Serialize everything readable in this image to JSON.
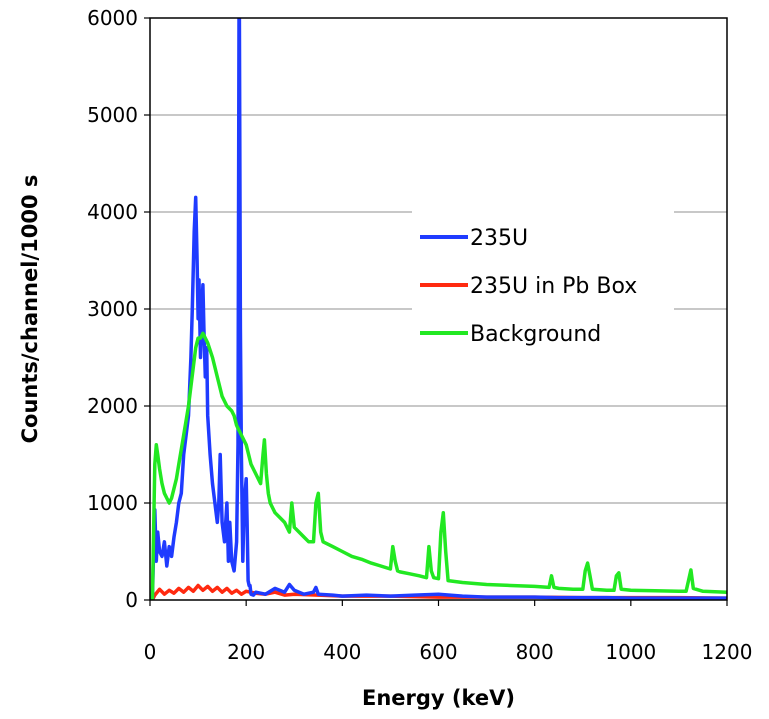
{
  "chart_data": {
    "type": "line",
    "title": "",
    "xlabel": "Energy (keV)",
    "ylabel": "Counts/channel/1000 s",
    "xlim": [
      0,
      1200
    ],
    "ylim": [
      0,
      6000
    ],
    "x_ticks": [
      0,
      200,
      400,
      600,
      800,
      1000,
      1200
    ],
    "y_ticks": [
      0,
      1000,
      2000,
      3000,
      4000,
      5000,
      6000
    ],
    "grid": "horizontal",
    "legend_position": "right-center",
    "series": [
      {
        "name": "235U",
        "color": "#1f3bff",
        "x": [
          5,
          8,
          10,
          13,
          16,
          20,
          25,
          30,
          35,
          40,
          45,
          50,
          55,
          60,
          65,
          70,
          75,
          80,
          85,
          88,
          92,
          95,
          98,
          100,
          102,
          105,
          108,
          110,
          112,
          115,
          118,
          120,
          125,
          130,
          135,
          140,
          143,
          146,
          150,
          155,
          160,
          163,
          166,
          170,
          175,
          180,
          183,
          185,
          186,
          188,
          190,
          193,
          196,
          200,
          202,
          204,
          206,
          208,
          210,
          215,
          220,
          240,
          260,
          280,
          290,
          300,
          320,
          340,
          345,
          350,
          380,
          400,
          450,
          500,
          550,
          600,
          650,
          700,
          750,
          800,
          850,
          900,
          950,
          1000,
          1050,
          1100,
          1150,
          1200
        ],
        "y": [
          0,
          600,
          930,
          400,
          700,
          500,
          450,
          600,
          350,
          550,
          450,
          650,
          800,
          1000,
          1100,
          1500,
          1700,
          1900,
          2500,
          3000,
          3800,
          4150,
          3500,
          2900,
          3300,
          2500,
          3000,
          3250,
          2800,
          2300,
          2600,
          1900,
          1500,
          1200,
          1000,
          800,
          1000,
          1500,
          800,
          600,
          1000,
          400,
          800,
          400,
          300,
          600,
          1600,
          6000,
          6000,
          2800,
          1500,
          400,
          1000,
          1250,
          800,
          200,
          150,
          150,
          60,
          50,
          80,
          60,
          120,
          80,
          160,
          100,
          60,
          80,
          130,
          60,
          50,
          40,
          50,
          40,
          50,
          60,
          40,
          30,
          30,
          30,
          25,
          25,
          25,
          20,
          20,
          20,
          20,
          20
        ]
      },
      {
        "name": "235U in Pb Box",
        "color": "#ff2a10",
        "x": [
          5,
          10,
          20,
          30,
          40,
          50,
          60,
          70,
          80,
          90,
          100,
          110,
          120,
          130,
          140,
          150,
          160,
          170,
          180,
          190,
          200,
          220,
          240,
          260,
          280,
          300,
          350,
          400,
          450,
          500,
          600,
          700,
          800,
          900,
          1000,
          1100,
          1200
        ],
        "y": [
          0,
          50,
          110,
          60,
          100,
          70,
          120,
          80,
          130,
          90,
          150,
          100,
          140,
          90,
          130,
          80,
          120,
          70,
          100,
          60,
          90,
          70,
          60,
          80,
          50,
          60,
          50,
          40,
          40,
          40,
          30,
          30,
          30,
          25,
          25,
          25,
          20
        ]
      },
      {
        "name": "Background",
        "color": "#22e822",
        "x": [
          5,
          10,
          13,
          16,
          20,
          25,
          30,
          35,
          40,
          45,
          50,
          55,
          60,
          70,
          80,
          90,
          95,
          100,
          105,
          110,
          115,
          120,
          130,
          140,
          150,
          160,
          170,
          175,
          180,
          185,
          190,
          200,
          210,
          220,
          230,
          235,
          238,
          242,
          246,
          250,
          260,
          270,
          280,
          290,
          295,
          300,
          310,
          320,
          330,
          340,
          345,
          350,
          355,
          360,
          380,
          400,
          420,
          440,
          460,
          480,
          500,
          505,
          510,
          515,
          520,
          540,
          560,
          575,
          580,
          585,
          590,
          600,
          605,
          610,
          615,
          620,
          650,
          700,
          750,
          800,
          830,
          835,
          840,
          850,
          880,
          900,
          905,
          910,
          915,
          920,
          950,
          965,
          970,
          975,
          980,
          1000,
          1050,
          1100,
          1115,
          1120,
          1125,
          1130,
          1150,
          1200
        ],
        "y": [
          0,
          1400,
          1600,
          1500,
          1350,
          1200,
          1100,
          1050,
          1000,
          1050,
          1150,
          1250,
          1400,
          1700,
          2000,
          2400,
          2600,
          2700,
          2700,
          2750,
          2700,
          2650,
          2500,
          2300,
          2100,
          2000,
          1950,
          1900,
          1800,
          1750,
          1700,
          1600,
          1400,
          1300,
          1200,
          1500,
          1650,
          1300,
          1100,
          1000,
          900,
          850,
          800,
          700,
          1000,
          750,
          700,
          650,
          600,
          600,
          1000,
          1100,
          700,
          600,
          550,
          500,
          450,
          420,
          380,
          350,
          320,
          550,
          400,
          300,
          290,
          270,
          250,
          230,
          550,
          300,
          230,
          220,
          700,
          900,
          500,
          200,
          180,
          160,
          150,
          140,
          130,
          250,
          130,
          120,
          110,
          110,
          300,
          380,
          250,
          110,
          100,
          100,
          250,
          280,
          110,
          100,
          95,
          90,
          90,
          200,
          310,
          120,
          90,
          80
        ]
      }
    ]
  }
}
